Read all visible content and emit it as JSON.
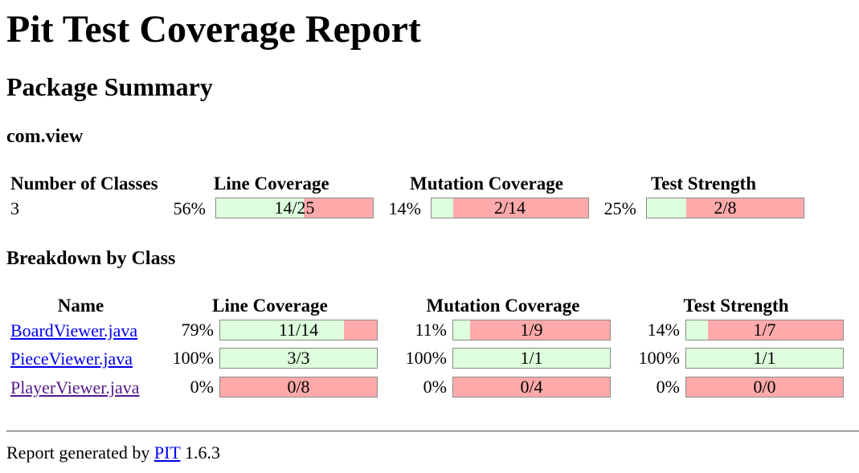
{
  "title": "Pit Test Coverage Report",
  "package_summary": {
    "heading": "Package Summary",
    "package_name": "com.view",
    "headers": {
      "classes": "Number of Classes",
      "line": "Line Coverage",
      "mutation": "Mutation Coverage",
      "strength": "Test Strength"
    },
    "num_classes": "3",
    "line": {
      "percent": "56%",
      "label": "14/25",
      "fraction": 0.56
    },
    "mutation": {
      "percent": "14%",
      "label": "2/14",
      "fraction": 0.14
    },
    "strength": {
      "percent": "25%",
      "label": "2/8",
      "fraction": 0.25
    }
  },
  "breakdown": {
    "heading": "Breakdown by Class",
    "headers": {
      "name": "Name",
      "line": "Line Coverage",
      "mutation": "Mutation Coverage",
      "strength": "Test Strength"
    },
    "rows": [
      {
        "name": "BoardViewer.java",
        "line": {
          "percent": "79%",
          "label": "11/14",
          "fraction": 0.79
        },
        "mutation": {
          "percent": "11%",
          "label": "1/9",
          "fraction": 0.11
        },
        "strength": {
          "percent": "14%",
          "label": "1/7",
          "fraction": 0.14
        }
      },
      {
        "name": "PieceViewer.java",
        "line": {
          "percent": "100%",
          "label": "3/3",
          "fraction": 1.0
        },
        "mutation": {
          "percent": "100%",
          "label": "1/1",
          "fraction": 1.0
        },
        "strength": {
          "percent": "100%",
          "label": "1/1",
          "fraction": 1.0
        }
      },
      {
        "name": "PlayerViewer.java",
        "line": {
          "percent": "0%",
          "label": "0/8",
          "fraction": 0.0
        },
        "mutation": {
          "percent": "0%",
          "label": "0/4",
          "fraction": 0.0
        },
        "strength": {
          "percent": "0%",
          "label": "0/0",
          "fraction": 0.0
        }
      }
    ]
  },
  "footer": {
    "prefix": "Report generated by",
    "link": "PIT",
    "version": "1.6.3"
  },
  "colors": {
    "covered": "#ddffdd",
    "uncovered": "#ffaaaa",
    "link": "#0000ee",
    "visited": "#551a8b"
  }
}
